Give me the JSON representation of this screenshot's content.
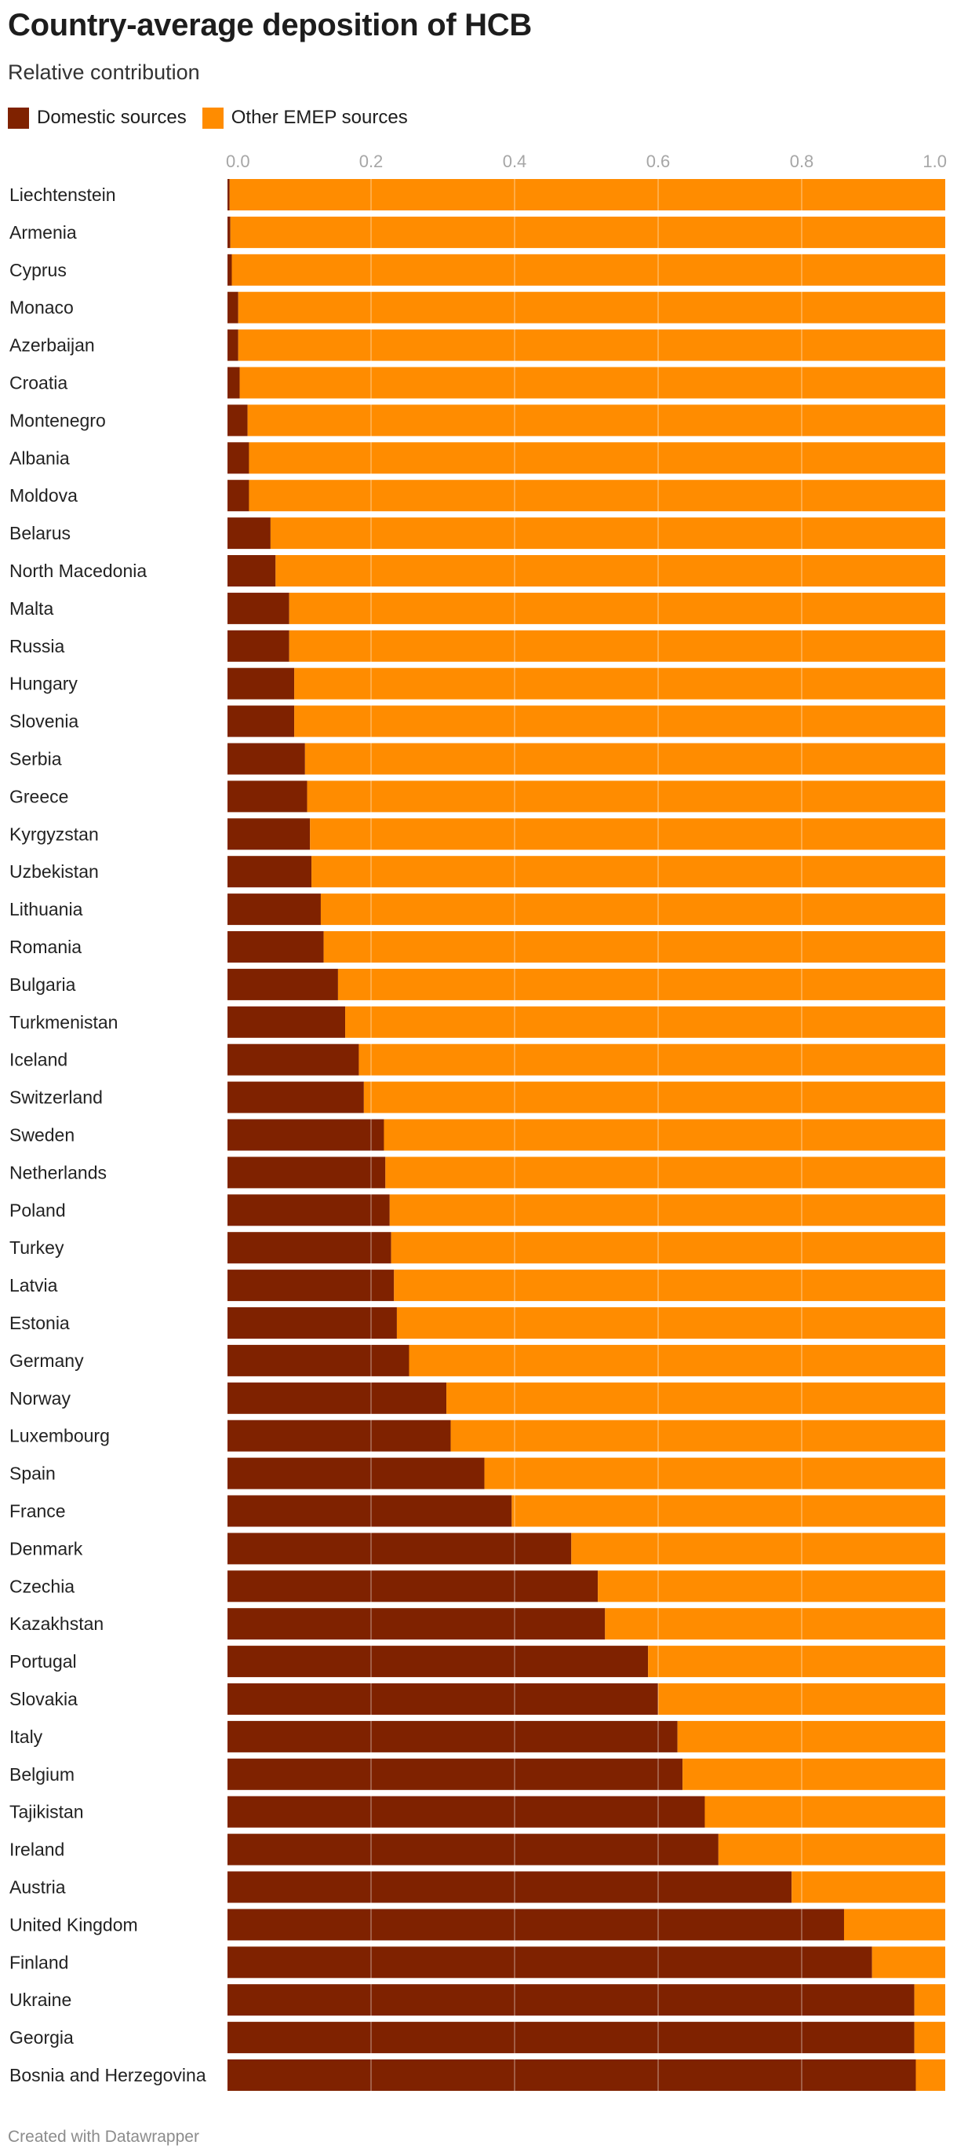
{
  "header": {
    "title": "Country-average deposition of HCB",
    "subtitle": "Relative contribution"
  },
  "footer": {
    "credit": "Created with Datawrapper"
  },
  "colors": {
    "domestic": "#7f2200",
    "other": "#ff8c00",
    "grid": "#ffffff"
  },
  "chart_data": {
    "type": "bar",
    "orientation": "horizontal",
    "stacked": true,
    "xlim": [
      0,
      1
    ],
    "x_ticks": [
      "0.0",
      "0.2",
      "0.4",
      "0.6",
      "0.8",
      "1.0"
    ],
    "grid": true,
    "legend_position": "top-left",
    "categories": [
      "Liechtenstein",
      "Armenia",
      "Cyprus",
      "Monaco",
      "Azerbaijan",
      "Croatia",
      "Montenegro",
      "Albania",
      "Moldova",
      "Belarus",
      "North Macedonia",
      "Malta",
      "Russia",
      "Hungary",
      "Slovenia",
      "Serbia",
      "Greece",
      "Kyrgyzstan",
      "Uzbekistan",
      "Lithuania",
      "Romania",
      "Bulgaria",
      "Turkmenistan",
      "Iceland",
      "Switzerland",
      "Sweden",
      "Netherlands",
      "Poland",
      "Turkey",
      "Latvia",
      "Estonia",
      "Germany",
      "Norway",
      "Luxembourg",
      "Spain",
      "France",
      "Denmark",
      "Czechia",
      "Kazakhstan",
      "Portugal",
      "Slovakia",
      "Italy",
      "Belgium",
      "Tajikistan",
      "Ireland",
      "Austria",
      "United Kingdom",
      "Finland",
      "Ukraine",
      "Georgia",
      "Bosnia and Herzegovina"
    ],
    "series": [
      {
        "name": "Domestic sources",
        "values": [
          0.003,
          0.004,
          0.006,
          0.015,
          0.015,
          0.017,
          0.028,
          0.03,
          0.03,
          0.06,
          0.067,
          0.086,
          0.086,
          0.093,
          0.093,
          0.108,
          0.111,
          0.115,
          0.117,
          0.13,
          0.134,
          0.154,
          0.164,
          0.183,
          0.19,
          0.218,
          0.22,
          0.226,
          0.228,
          0.232,
          0.236,
          0.253,
          0.305,
          0.311,
          0.358,
          0.396,
          0.479,
          0.516,
          0.526,
          0.586,
          0.6,
          0.627,
          0.634,
          0.665,
          0.684,
          0.786,
          0.859,
          0.898,
          0.957,
          0.957,
          0.959
        ]
      },
      {
        "name": "Other EMEP sources",
        "values": [
          0.997,
          0.996,
          0.994,
          0.985,
          0.985,
          0.983,
          0.972,
          0.97,
          0.97,
          0.94,
          0.933,
          0.914,
          0.914,
          0.907,
          0.907,
          0.892,
          0.889,
          0.885,
          0.883,
          0.87,
          0.866,
          0.846,
          0.836,
          0.817,
          0.81,
          0.782,
          0.78,
          0.774,
          0.772,
          0.768,
          0.764,
          0.747,
          0.695,
          0.689,
          0.642,
          0.604,
          0.521,
          0.484,
          0.474,
          0.414,
          0.4,
          0.373,
          0.366,
          0.335,
          0.316,
          0.214,
          0.141,
          0.102,
          0.043,
          0.043,
          0.041
        ]
      }
    ]
  }
}
